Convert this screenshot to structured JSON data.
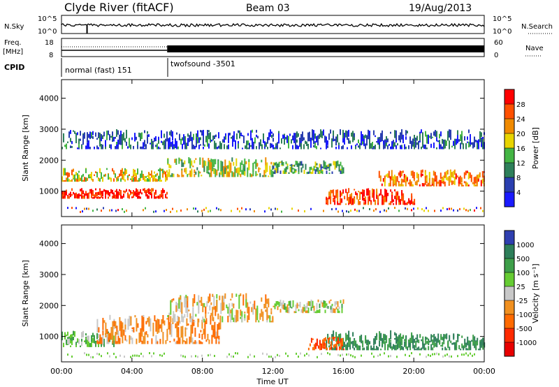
{
  "header": {
    "station": "Clyde River (fitACF)",
    "beam": "Beam 03",
    "date": "19/Aug/2013"
  },
  "strips": {
    "nsky": {
      "left_label": "N.Sky",
      "left_ticks": [
        "10^5",
        "10^0"
      ],
      "right_ticks": [
        "10^5",
        "10^0"
      ],
      "right_label": "N.Search"
    },
    "freq": {
      "left_label_line1": "Freq.",
      "left_label_line2": "[MHz]",
      "left_ticks": [
        "18",
        "8"
      ],
      "right_ticks": [
        "60",
        "0"
      ],
      "right_label": "Nave"
    },
    "cpid": {
      "label": "CPID",
      "modes": [
        "normal (fast) 151",
        "twofsound -3501"
      ]
    }
  },
  "axes": {
    "xlabel": "Time UT",
    "xticks": [
      "00:00",
      "04:00",
      "08:00",
      "12:00",
      "16:00",
      "20:00",
      "00:00"
    ],
    "ylabel": "Slant Range [km]",
    "yticks": [
      "1000",
      "2000",
      "3000",
      "4000"
    ]
  },
  "colorbars": {
    "power": {
      "label": "Power [dB]",
      "ticks": [
        "4",
        "8",
        "12",
        "16",
        "20",
        "24",
        "28"
      ],
      "colors": [
        "#1a1aff",
        "#2a3fb0",
        "#2e7f5a",
        "#44b544",
        "#e8d400",
        "#f08a00",
        "#ff5000",
        "#ff0000"
      ]
    },
    "velocity": {
      "label": "Velocity [m s⁻¹]",
      "ticks": [
        "1000",
        "500",
        "100",
        "25",
        "-25",
        "-100",
        "-500",
        "-1000"
      ],
      "colors": [
        "#2f3fb0",
        "#2e7f5a",
        "#3e9f4a",
        "#66cc33",
        "#c8c8c8",
        "#f09020",
        "#ff6a00",
        "#ff2a00",
        "#e80000"
      ]
    }
  },
  "chart_data": [
    {
      "type": "heatmap",
      "title": "Power",
      "xlabel": "Time UT",
      "ylabel": "Slant Range [km]",
      "xlim": [
        "00:00",
        "24:00"
      ],
      "ylim": [
        180,
        4600
      ],
      "colorbar_range": [
        0,
        30
      ],
      "colorbar_unit": "dB",
      "series": [
        {
          "t_start": 0.0,
          "t_end": 6.0,
          "range_low": 800,
          "range_high": 1100,
          "value": 28
        },
        {
          "t_start": 0.0,
          "t_end": 6.0,
          "range_low": 1350,
          "range_high": 1750,
          "value": 18
        },
        {
          "t_start": 6.0,
          "t_end": 12.0,
          "range_low": 1500,
          "range_high": 2100,
          "value": 16
        },
        {
          "t_start": 12.0,
          "t_end": 16.0,
          "range_low": 1600,
          "range_high": 2000,
          "value": 12
        },
        {
          "t_start": 15.0,
          "t_end": 20.0,
          "range_low": 600,
          "range_high": 1100,
          "value": 26
        },
        {
          "t_start": 18.0,
          "t_end": 24.0,
          "range_low": 1200,
          "range_high": 1700,
          "value": 22
        },
        {
          "t_start": 0.0,
          "t_end": 24.0,
          "range_low": 2400,
          "range_high": 3000,
          "value": 6
        }
      ]
    },
    {
      "type": "heatmap",
      "title": "Velocity",
      "xlabel": "Time UT",
      "ylabel": "Slant Range [km]",
      "xlim": [
        "00:00",
        "24:00"
      ],
      "ylim": [
        180,
        4600
      ],
      "colorbar_range": [
        -1000,
        1000
      ],
      "colorbar_unit": "m s^-1",
      "series": [
        {
          "t_start": 0.0,
          "t_end": 3.0,
          "range_low": 700,
          "range_high": 1200,
          "value": 100
        },
        {
          "t_start": 2.0,
          "t_end": 9.0,
          "range_low": 800,
          "range_high": 1700,
          "value": -100
        },
        {
          "t_start": 6.0,
          "t_end": 12.0,
          "range_low": 1500,
          "range_high": 2400,
          "value": -25
        },
        {
          "t_start": 12.0,
          "t_end": 16.0,
          "range_low": 1800,
          "range_high": 2200,
          "value": 25
        },
        {
          "t_start": 15.0,
          "t_end": 20.0,
          "range_low": 600,
          "range_high": 1200,
          "value": 500
        },
        {
          "t_start": 20.0,
          "t_end": 24.0,
          "range_low": 600,
          "range_high": 1100,
          "value": 500
        },
        {
          "t_start": 14.0,
          "t_end": 16.0,
          "range_low": 600,
          "range_high": 1000,
          "value": -500
        }
      ]
    }
  ]
}
